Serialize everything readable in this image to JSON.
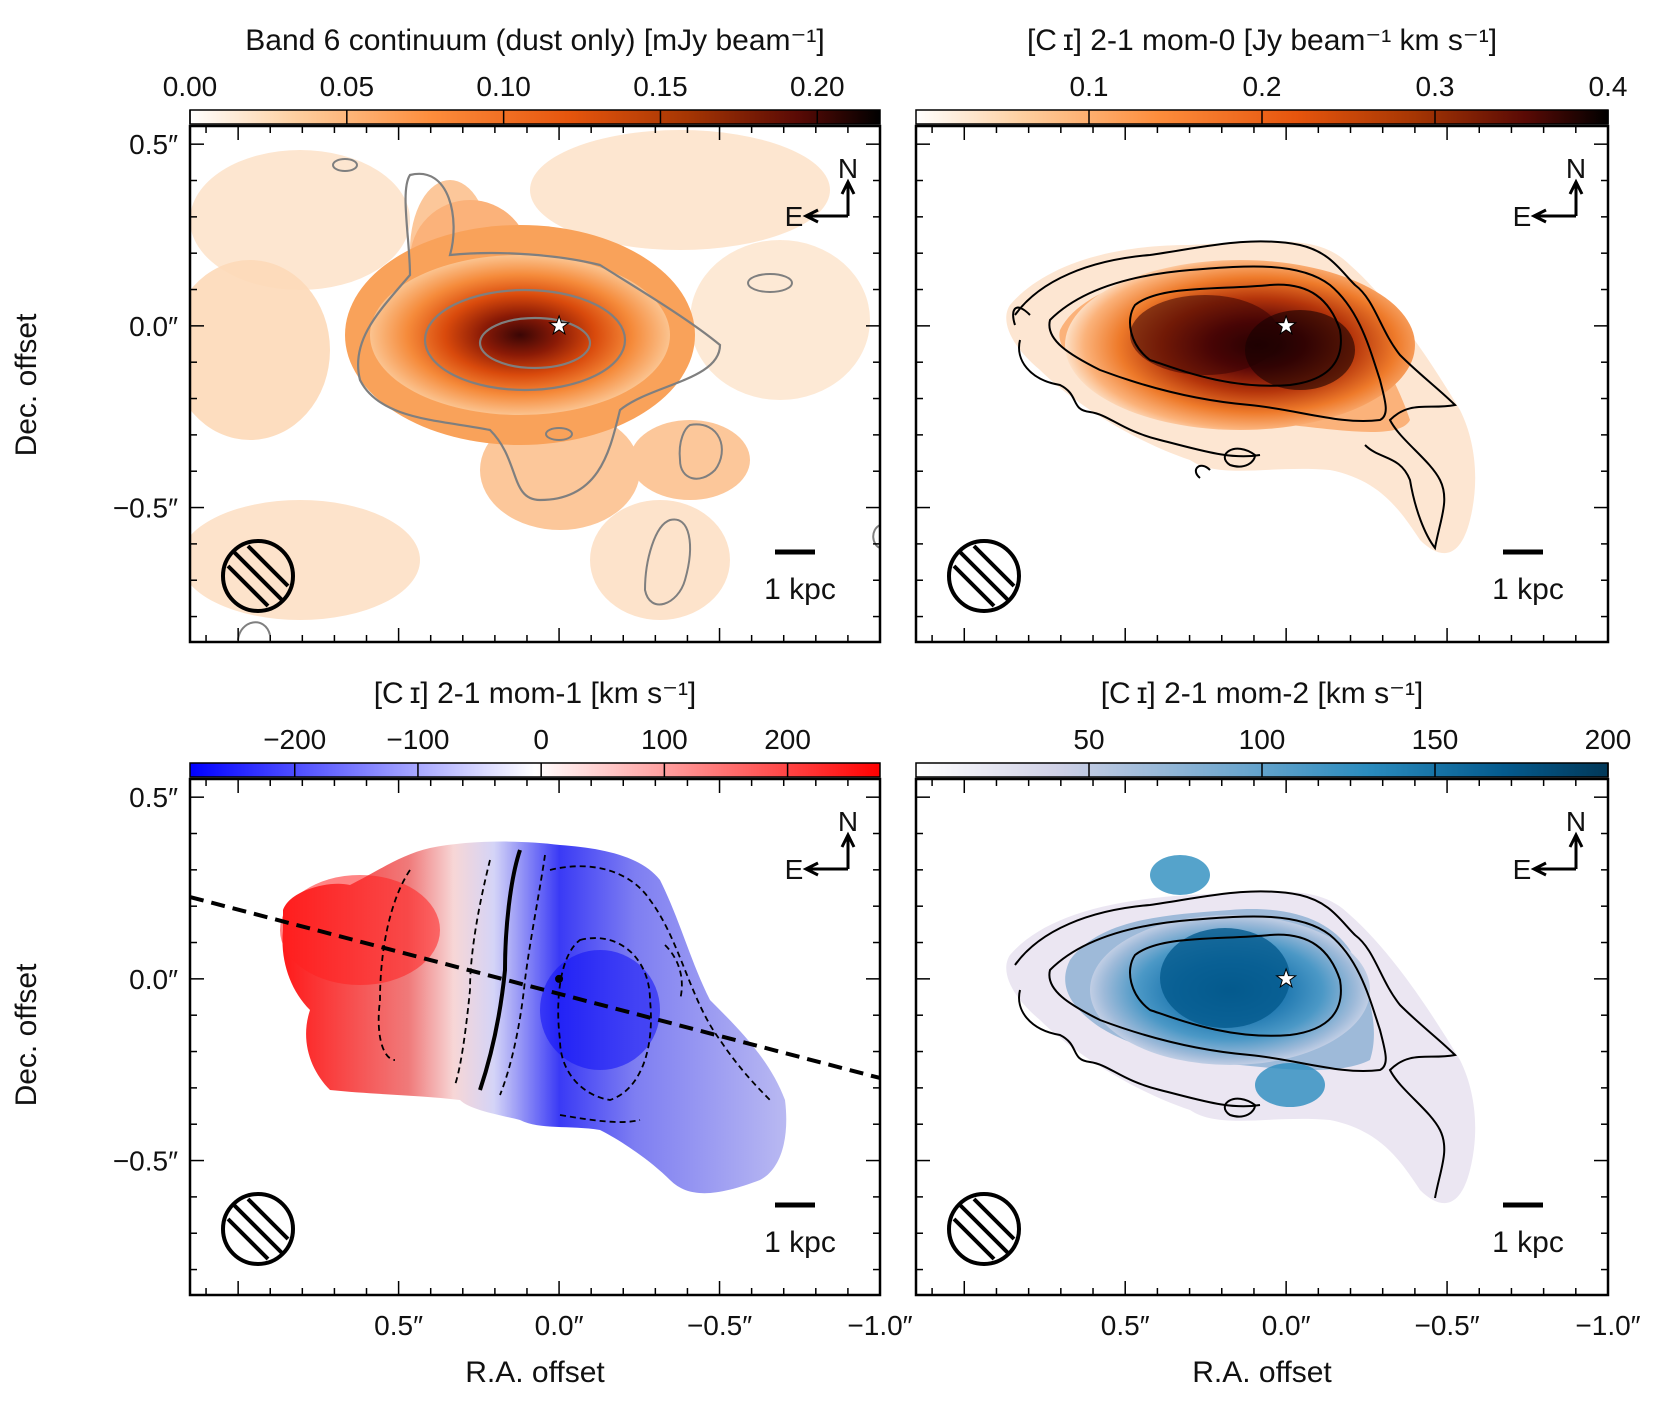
{
  "figure": {
    "x_axis_label": "R.A. offset",
    "y_axis_label": "Dec. offset"
  },
  "chart_data": [
    {
      "type": "heatmap",
      "panel": "top-left",
      "colorbar": {
        "title": "Band 6 continuum (dust only) [mJy beam⁻¹]",
        "range": [
          0.0,
          0.22
        ],
        "tick_values": [
          0.0,
          0.05,
          0.1,
          0.15,
          0.2
        ],
        "tick_labels": [
          "0.00",
          "0.05",
          "0.10",
          "0.15",
          "0.20"
        ],
        "colormap": [
          "#ffffff",
          "#fdd0a2",
          "#fd8d3c",
          "#e6550d",
          "#a63603",
          "#5a0a05",
          "#000000"
        ]
      },
      "contour_color": "#7f7f7f",
      "compass": {
        "north": "N",
        "east": "E"
      },
      "scale_bar": "1 kpc",
      "peak_marker": "star at (0.0, 0.0)",
      "y_ticks": [
        "0.5″",
        "0.0″",
        "−0.5″"
      ]
    },
    {
      "type": "heatmap",
      "panel": "top-right",
      "colorbar": {
        "title": "[C ɪ] 2-1 mom-0 [Jy beam⁻¹ km s⁻¹]",
        "range": [
          0.0,
          0.4
        ],
        "tick_values": [
          0.1,
          0.2,
          0.3,
          0.4
        ],
        "tick_labels": [
          "0.1",
          "0.2",
          "0.3",
          "0.4"
        ],
        "colormap": [
          "#ffffff",
          "#fdd0a2",
          "#fd8d3c",
          "#e6550d",
          "#a63603",
          "#5a0a05",
          "#000000"
        ]
      },
      "contour_color": "#000000",
      "compass": {
        "north": "N",
        "east": "E"
      },
      "scale_bar": "1 kpc",
      "peak_marker": "star at (0.0, 0.0)"
    },
    {
      "type": "heatmap",
      "panel": "bottom-left",
      "colorbar": {
        "title": "[C ɪ] 2-1 mom-1 [km s⁻¹]",
        "range": [
          -285,
          275
        ],
        "tick_values": [
          -200,
          -100,
          0,
          100,
          200
        ],
        "tick_labels": [
          "−200",
          "−100",
          "0",
          "100",
          "200"
        ],
        "colormap": [
          "#0000ff",
          "#7f7fff",
          "#ffffff",
          "#ff7f7f",
          "#ff0000"
        ]
      },
      "kinematic_major_axis": {
        "from": [
          1.15,
          0.23
        ],
        "to": [
          -1.0,
          -0.26
        ],
        "style": "dashed"
      },
      "compass": {
        "north": "N",
        "east": "E"
      },
      "scale_bar": "1 kpc",
      "x_ticks": [
        "0.5″",
        "0.0″",
        "−0.5″",
        "−1.0″"
      ],
      "y_ticks": [
        "0.5″",
        "0.0″",
        "−0.5″"
      ]
    },
    {
      "type": "heatmap",
      "panel": "bottom-right",
      "colorbar": {
        "title": "[C ɪ] 2-1 mom-2 [km s⁻¹]",
        "range": [
          0,
          200
        ],
        "tick_values": [
          50,
          100,
          150,
          200
        ],
        "tick_labels": [
          "50",
          "100",
          "150",
          "200"
        ],
        "colormap": [
          "#ffffff",
          "#d0d1e6",
          "#74a9cf",
          "#2b8cbe",
          "#045a8d",
          "#023858"
        ]
      },
      "contour_color": "#000000",
      "compass": {
        "north": "N",
        "east": "E"
      },
      "scale_bar": "1 kpc",
      "peak_marker": "star at (0.0, 0.0)",
      "x_ticks": [
        "0.5″",
        "0.0″",
        "−0.5″",
        "−1.0″"
      ]
    }
  ]
}
